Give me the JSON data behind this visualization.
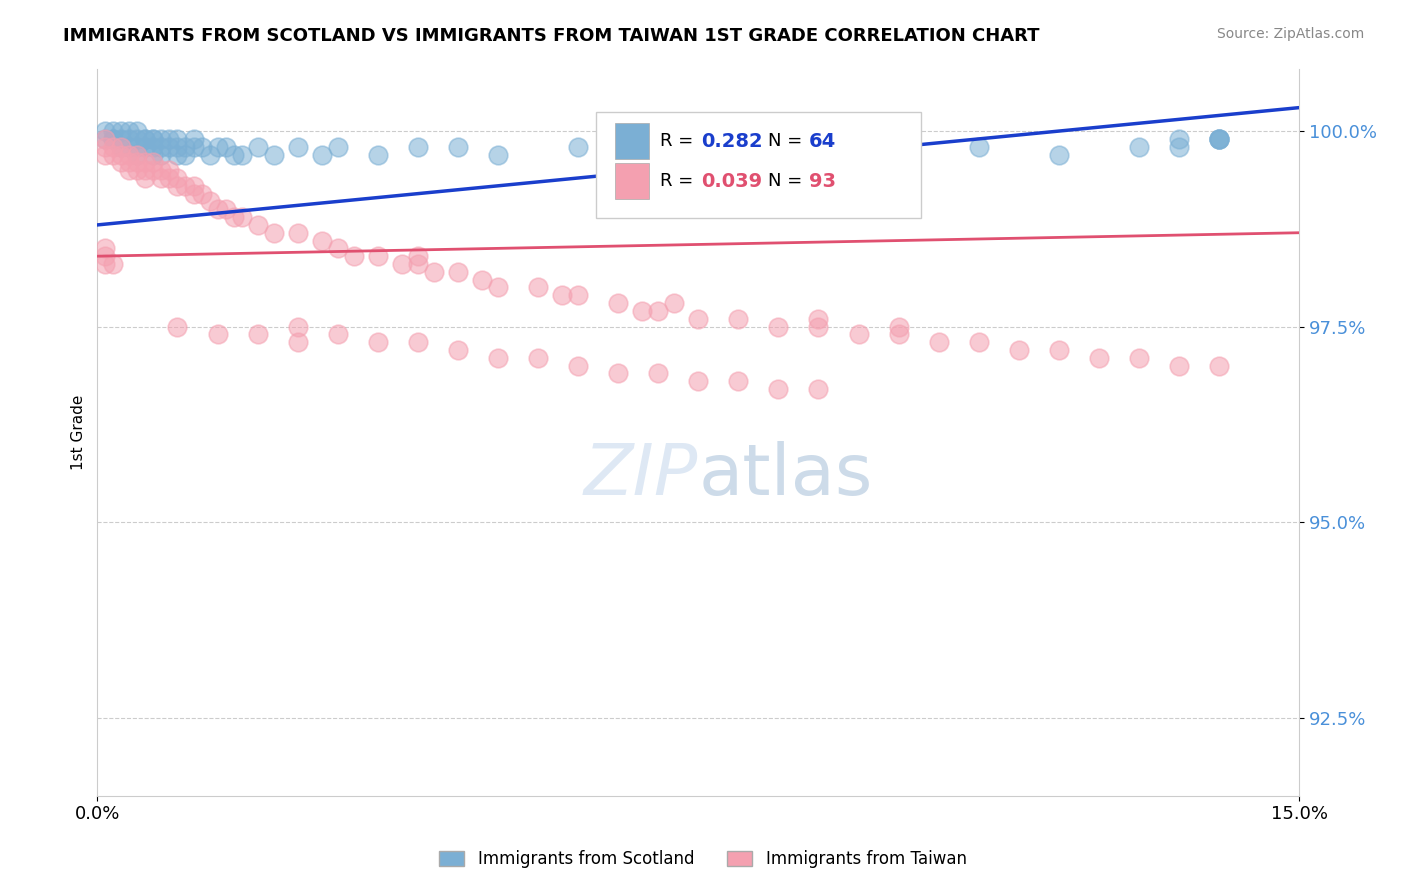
{
  "title": "IMMIGRANTS FROM SCOTLAND VS IMMIGRANTS FROM TAIWAN 1ST GRADE CORRELATION CHART",
  "source_text": "Source: ZipAtlas.com",
  "ylabel": "1st Grade",
  "ytick_labels": [
    "100.0%",
    "97.5%",
    "95.0%",
    "92.5%"
  ],
  "ytick_values": [
    1.0,
    0.975,
    0.95,
    0.925
  ],
  "xlim": [
    0.0,
    0.15
  ],
  "ylim": [
    0.915,
    1.008
  ],
  "legend_label_scotland": "Immigrants from Scotland",
  "legend_label_taiwan": "Immigrants from Taiwan",
  "scotland_color": "#7bafd4",
  "taiwan_color": "#f4a0b0",
  "scotland_line_color": "#1a3ecc",
  "taiwan_line_color": "#e05070",
  "scotland_R": 0.282,
  "scotland_N": 64,
  "taiwan_R": 0.039,
  "taiwan_N": 93,
  "scotland_line_x0": 0.0,
  "scotland_line_y0": 0.988,
  "scotland_line_x1": 0.15,
  "scotland_line_y1": 1.003,
  "taiwan_line_x0": 0.0,
  "taiwan_line_y0": 0.984,
  "taiwan_line_x1": 0.15,
  "taiwan_line_y1": 0.987,
  "scotland_x": [
    0.001,
    0.001,
    0.002,
    0.002,
    0.002,
    0.003,
    0.003,
    0.003,
    0.004,
    0.004,
    0.004,
    0.005,
    0.005,
    0.005,
    0.005,
    0.006,
    0.006,
    0.006,
    0.007,
    0.007,
    0.007,
    0.007,
    0.008,
    0.008,
    0.008,
    0.009,
    0.009,
    0.01,
    0.01,
    0.01,
    0.011,
    0.011,
    0.012,
    0.012,
    0.013,
    0.014,
    0.015,
    0.016,
    0.017,
    0.018,
    0.02,
    0.022,
    0.025,
    0.028,
    0.03,
    0.035,
    0.04,
    0.045,
    0.05,
    0.06,
    0.065,
    0.07,
    0.08,
    0.09,
    0.1,
    0.11,
    0.12,
    0.13,
    0.135,
    0.14,
    0.14,
    0.14,
    0.14,
    0.135
  ],
  "scotland_y": [
    1.0,
    0.999,
    1.0,
    0.999,
    0.999,
    1.0,
    0.999,
    0.998,
    1.0,
    0.999,
    0.998,
    1.0,
    0.999,
    0.998,
    0.997,
    0.999,
    0.999,
    0.998,
    0.999,
    0.999,
    0.998,
    0.997,
    0.999,
    0.998,
    0.997,
    0.999,
    0.998,
    0.999,
    0.998,
    0.997,
    0.998,
    0.997,
    0.999,
    0.998,
    0.998,
    0.997,
    0.998,
    0.998,
    0.997,
    0.997,
    0.998,
    0.997,
    0.998,
    0.997,
    0.998,
    0.997,
    0.998,
    0.998,
    0.997,
    0.998,
    0.997,
    0.998,
    0.998,
    0.997,
    0.998,
    0.998,
    0.997,
    0.998,
    0.998,
    0.999,
    0.999,
    0.999,
    0.999,
    0.999
  ],
  "taiwan_x": [
    0.001,
    0.001,
    0.001,
    0.002,
    0.002,
    0.003,
    0.003,
    0.003,
    0.004,
    0.004,
    0.004,
    0.005,
    0.005,
    0.005,
    0.006,
    0.006,
    0.006,
    0.007,
    0.007,
    0.008,
    0.008,
    0.009,
    0.009,
    0.01,
    0.01,
    0.011,
    0.012,
    0.012,
    0.013,
    0.014,
    0.015,
    0.016,
    0.017,
    0.018,
    0.02,
    0.022,
    0.025,
    0.028,
    0.03,
    0.032,
    0.035,
    0.038,
    0.04,
    0.04,
    0.042,
    0.045,
    0.048,
    0.05,
    0.055,
    0.058,
    0.06,
    0.065,
    0.068,
    0.07,
    0.072,
    0.075,
    0.08,
    0.085,
    0.09,
    0.09,
    0.095,
    0.1,
    0.1,
    0.105,
    0.11,
    0.115,
    0.12,
    0.125,
    0.13,
    0.135,
    0.14,
    0.025,
    0.03,
    0.035,
    0.04,
    0.045,
    0.05,
    0.055,
    0.06,
    0.065,
    0.07,
    0.075,
    0.08,
    0.085,
    0.09,
    0.01,
    0.015,
    0.02,
    0.025,
    0.001,
    0.001,
    0.001,
    0.002
  ],
  "taiwan_y": [
    0.999,
    0.998,
    0.997,
    0.998,
    0.997,
    0.998,
    0.997,
    0.996,
    0.997,
    0.996,
    0.995,
    0.997,
    0.996,
    0.995,
    0.996,
    0.995,
    0.994,
    0.996,
    0.995,
    0.995,
    0.994,
    0.995,
    0.994,
    0.994,
    0.993,
    0.993,
    0.993,
    0.992,
    0.992,
    0.991,
    0.99,
    0.99,
    0.989,
    0.989,
    0.988,
    0.987,
    0.987,
    0.986,
    0.985,
    0.984,
    0.984,
    0.983,
    0.983,
    0.984,
    0.982,
    0.982,
    0.981,
    0.98,
    0.98,
    0.979,
    0.979,
    0.978,
    0.977,
    0.977,
    0.978,
    0.976,
    0.976,
    0.975,
    0.975,
    0.976,
    0.974,
    0.974,
    0.975,
    0.973,
    0.973,
    0.972,
    0.972,
    0.971,
    0.971,
    0.97,
    0.97,
    0.975,
    0.974,
    0.973,
    0.973,
    0.972,
    0.971,
    0.971,
    0.97,
    0.969,
    0.969,
    0.968,
    0.968,
    0.967,
    0.967,
    0.975,
    0.974,
    0.974,
    0.973,
    0.984,
    0.983,
    0.985,
    0.983
  ]
}
